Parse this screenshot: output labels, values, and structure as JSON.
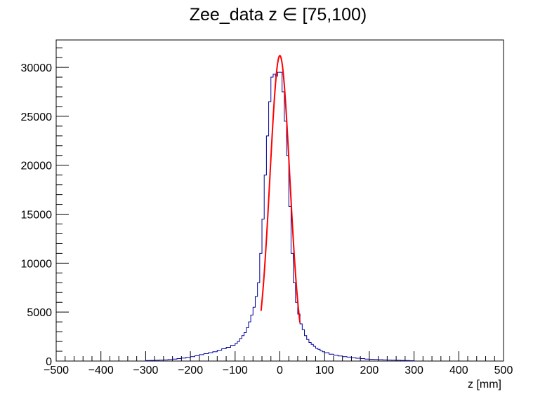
{
  "chart_data": {
    "type": "bar",
    "title": "Zee_data z  ∈ [75,100)",
    "xlabel": "z [mm]",
    "ylabel": "",
    "xlim": [
      -500,
      500
    ],
    "ylim": [
      0,
      32800
    ],
    "grid": false,
    "legend": "none",
    "x_ticks": [
      -500,
      -400,
      -300,
      -200,
      -100,
      0,
      100,
      200,
      300,
      400,
      500
    ],
    "x_tick_labels": [
      "−500",
      "−400",
      "−300",
      "−200",
      "−100",
      "0",
      "100",
      "200",
      "300",
      "400",
      "500"
    ],
    "y_ticks": [
      0,
      5000,
      10000,
      15000,
      20000,
      25000,
      30000
    ],
    "y_tick_labels": [
      "0",
      "5000",
      "10000",
      "15000",
      "20000",
      "25000",
      "30000"
    ],
    "histogram": {
      "name": "",
      "color": "#000099",
      "bin_edges": [
        -300,
        -290,
        -280,
        -270,
        -260,
        -250,
        -240,
        -230,
        -220,
        -210,
        -200,
        -190,
        -180,
        -170,
        -160,
        -150,
        -140,
        -130,
        -120,
        -110,
        -100,
        -95,
        -90,
        -85,
        -80,
        -75,
        -70,
        -65,
        -60,
        -55,
        -50,
        -45,
        -40,
        -35,
        -30,
        -25,
        -20,
        -15,
        -10,
        -5,
        0,
        5,
        10,
        15,
        20,
        25,
        30,
        35,
        40,
        45,
        50,
        55,
        60,
        65,
        70,
        75,
        80,
        85,
        90,
        95,
        100,
        110,
        120,
        130,
        140,
        150,
        160,
        170,
        180,
        190,
        200,
        210,
        220,
        230,
        240,
        250,
        260,
        270,
        280,
        290,
        300
      ],
      "counts": [
        50,
        60,
        80,
        100,
        120,
        150,
        200,
        250,
        300,
        380,
        450,
        550,
        650,
        750,
        850,
        950,
        1100,
        1250,
        1400,
        1600,
        1800,
        2000,
        2300,
        2600,
        2900,
        3400,
        4000,
        4700,
        5500,
        6600,
        8000,
        11000,
        14500,
        19000,
        23000,
        26500,
        29000,
        29300,
        29100,
        29500,
        29500,
        27500,
        24500,
        21000,
        15800,
        11000,
        8000,
        6000,
        4800,
        3800,
        3200,
        2600,
        2200,
        1900,
        1700,
        1500,
        1300,
        1200,
        1050,
        950,
        850,
        700,
        600,
        520,
        450,
        400,
        330,
        290,
        250,
        200,
        180,
        160,
        140,
        120,
        100,
        90,
        80,
        60,
        50,
        40
      ]
    },
    "fit": {
      "name": "",
      "color": "#ff0000",
      "type": "gaussian",
      "mean": 0,
      "sigma": 22.1,
      "amplitude": 31200,
      "range": [
        -42,
        45
      ]
    }
  }
}
